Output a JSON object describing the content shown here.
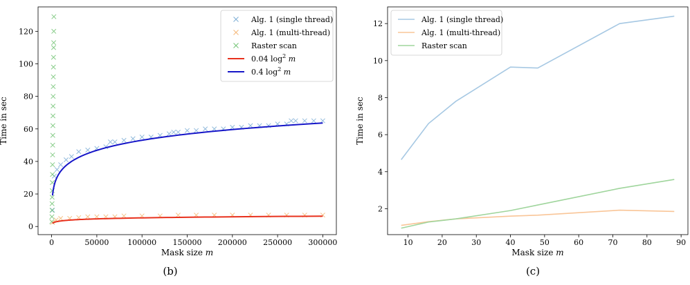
{
  "chart_data": [
    {
      "panel": "(b)",
      "type": "scatter",
      "xlabel": "Mask size m",
      "ylabel": "Time in sec",
      "xlim": [
        -15000,
        315000
      ],
      "ylim": [
        -5,
        135
      ],
      "xticks": [
        0,
        50000,
        100000,
        150000,
        200000,
        250000,
        300000
      ],
      "yticks": [
        0,
        20,
        40,
        60,
        80,
        100,
        120
      ],
      "legend_position": "top-right",
      "grid": false,
      "series": [
        {
          "name": "Alg. 1 (single thread)",
          "kind": "scatter",
          "color": "#7eaed6",
          "x": [
            1000,
            3000,
            6000,
            10000,
            16000,
            22000,
            30000,
            40000,
            50000,
            60000,
            65000,
            70000,
            80000,
            90000,
            100000,
            110000,
            120000,
            130000,
            135000,
            140000,
            150000,
            160000,
            170000,
            180000,
            190000,
            200000,
            210000,
            220000,
            230000,
            240000,
            250000,
            260000,
            265000,
            270000,
            280000,
            290000,
            300000
          ],
          "y": [
            10,
            31,
            35,
            38,
            41,
            43,
            46,
            47,
            48,
            49,
            52,
            52,
            53,
            54,
            55,
            55,
            56,
            57,
            58,
            58,
            59,
            59,
            60,
            60,
            60,
            61,
            61,
            62,
            62,
            62,
            63,
            63,
            65,
            65,
            65,
            65,
            65
          ]
        },
        {
          "name": "Alg. 1 (multi-thread)",
          "kind": "scatter",
          "color": "#f5b877",
          "x": [
            1000,
            5000,
            10000,
            20000,
            30000,
            40000,
            50000,
            60000,
            70000,
            80000,
            100000,
            120000,
            140000,
            160000,
            180000,
            200000,
            220000,
            240000,
            260000,
            280000,
            300000
          ],
          "y": [
            2.5,
            4,
            5,
            5,
            5.5,
            6,
            6,
            6,
            6,
            6.5,
            6.5,
            6.5,
            7,
            7,
            7,
            7,
            7,
            7,
            7,
            7,
            7
          ]
        },
        {
          "name": "Raster scan",
          "kind": "scatter",
          "color": "#74c476",
          "x": [
            200,
            300,
            400,
            500,
            600,
            700,
            800,
            900,
            1000,
            1100,
            1200,
            1300,
            1400,
            1500,
            1600,
            1700,
            1800,
            1900,
            2000,
            2100,
            2200,
            2300,
            2400,
            2500
          ],
          "y": [
            3,
            6,
            10,
            14,
            18,
            22,
            27,
            32,
            38,
            44,
            50,
            56,
            62,
            68,
            74,
            80,
            86,
            92,
            98,
            104,
            110,
            113,
            120,
            129
          ]
        },
        {
          "name": "0.04 log² m",
          "kind": "line",
          "color": "#e8301c",
          "coef": 0.04,
          "xrange": [
            1000,
            300000
          ]
        },
        {
          "name": "0.4 log² m",
          "kind": "line",
          "color": "#1515c8",
          "coef": 0.4,
          "xrange": [
            1000,
            300000
          ]
        }
      ]
    },
    {
      "panel": "(c)",
      "type": "line",
      "xlabel": "Mask size m",
      "ylabel": "Time in sec",
      "xlim": [
        4,
        92
      ],
      "ylim": [
        0.6,
        12.9
      ],
      "xticks": [
        10,
        20,
        30,
        40,
        50,
        60,
        70,
        80,
        90
      ],
      "yticks": [
        2,
        4,
        6,
        8,
        10,
        12
      ],
      "legend_position": "top-left",
      "grid": false,
      "series": [
        {
          "name": "Alg. 1 (single thread)",
          "color": "#a6c8e3",
          "x": [
            8,
            16,
            24,
            40,
            48,
            72,
            88
          ],
          "y": [
            4.65,
            6.6,
            7.8,
            9.65,
            9.6,
            12.0,
            12.4
          ]
        },
        {
          "name": "Alg. 1 (multi-thread)",
          "color": "#f9c597",
          "x": [
            8,
            16,
            24,
            40,
            48,
            72,
            88
          ],
          "y": [
            1.1,
            1.3,
            1.45,
            1.6,
            1.65,
            1.92,
            1.85
          ]
        },
        {
          "name": "Raster scan",
          "color": "#9fd59c",
          "x": [
            8,
            16,
            24,
            40,
            48,
            72,
            88
          ],
          "y": [
            0.95,
            1.28,
            1.45,
            1.9,
            2.2,
            3.1,
            3.58
          ]
        }
      ]
    }
  ]
}
